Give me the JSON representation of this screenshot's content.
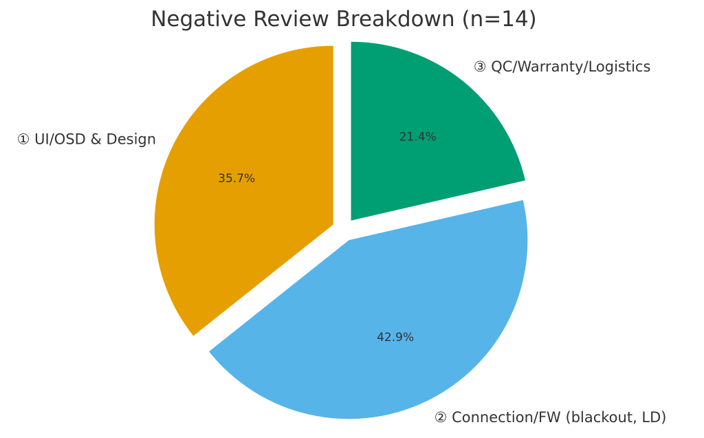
{
  "chart_data": {
    "type": "pie",
    "title": "Negative Review Breakdown (n=14)",
    "slices": [
      {
        "label": "① UI/OSD & Design",
        "value": 35.7,
        "display": "35.7%",
        "color": "#E69F00"
      },
      {
        "label": "② Connection/FW (blackout, LD)",
        "value": 42.9,
        "display": "42.9%",
        "color": "#56B4E9"
      },
      {
        "label": "③ QC/Warranty/Logistics",
        "value": 21.4,
        "display": "21.4%",
        "color": "#009E73"
      }
    ],
    "start_angle_deg": 90,
    "direction": "counterclockwise",
    "exploded": true,
    "legend": "none"
  }
}
